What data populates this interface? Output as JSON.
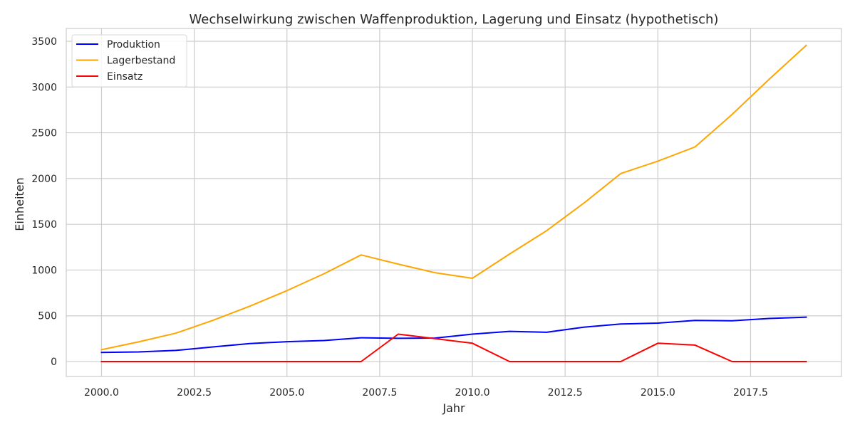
{
  "chart_data": {
    "type": "line",
    "title": "Wechselwirkung zwischen Waffenproduktion, Lagerung und Einsatz (hypothetisch)",
    "xlabel": "Jahr",
    "ylabel": "Einheiten",
    "x": [
      2000,
      2001,
      2002,
      2003,
      2004,
      2005,
      2006,
      2007,
      2008,
      2009,
      2010,
      2011,
      2012,
      2013,
      2014,
      2015,
      2016,
      2017,
      2018,
      2019
    ],
    "xlim": [
      1999.05,
      2019.95
    ],
    "ylim": [
      -163,
      3640
    ],
    "x_ticks": [
      2000.0,
      2002.5,
      2005.0,
      2007.5,
      2010.0,
      2012.5,
      2015.0,
      2017.5
    ],
    "x_tick_labels": [
      "2000.0",
      "2002.5",
      "2005.0",
      "2007.5",
      "2010.0",
      "2012.5",
      "2015.0",
      "2017.5"
    ],
    "y_ticks": [
      0,
      500,
      1000,
      1500,
      2000,
      2500,
      3000,
      3500
    ],
    "y_tick_labels": [
      "0",
      "500",
      "1000",
      "1500",
      "2000",
      "2500",
      "3000",
      "3500"
    ],
    "grid": true,
    "legend_position": "top-left",
    "series": [
      {
        "name": "Produktion",
        "color": "#0000ff",
        "values": [
          100,
          105,
          122,
          160,
          196,
          217,
          230,
          260,
          254,
          257,
          300,
          330,
          320,
          375,
          410,
          420,
          450,
          445,
          471,
          485
        ]
      },
      {
        "name": "Lagerbestand",
        "color": "#ffa500",
        "values": [
          130,
          215,
          310,
          450,
          605,
          775,
          960,
          1165,
          1065,
          970,
          910,
          1175,
          1430,
          1730,
          2055,
          2190,
          2345,
          2700,
          3085,
          3455
        ]
      },
      {
        "name": "Einsatz",
        "color": "#ff0000",
        "values": [
          0,
          0,
          0,
          0,
          0,
          0,
          0,
          0,
          300,
          250,
          200,
          0,
          0,
          0,
          0,
          200,
          180,
          0,
          0,
          0
        ]
      }
    ]
  }
}
